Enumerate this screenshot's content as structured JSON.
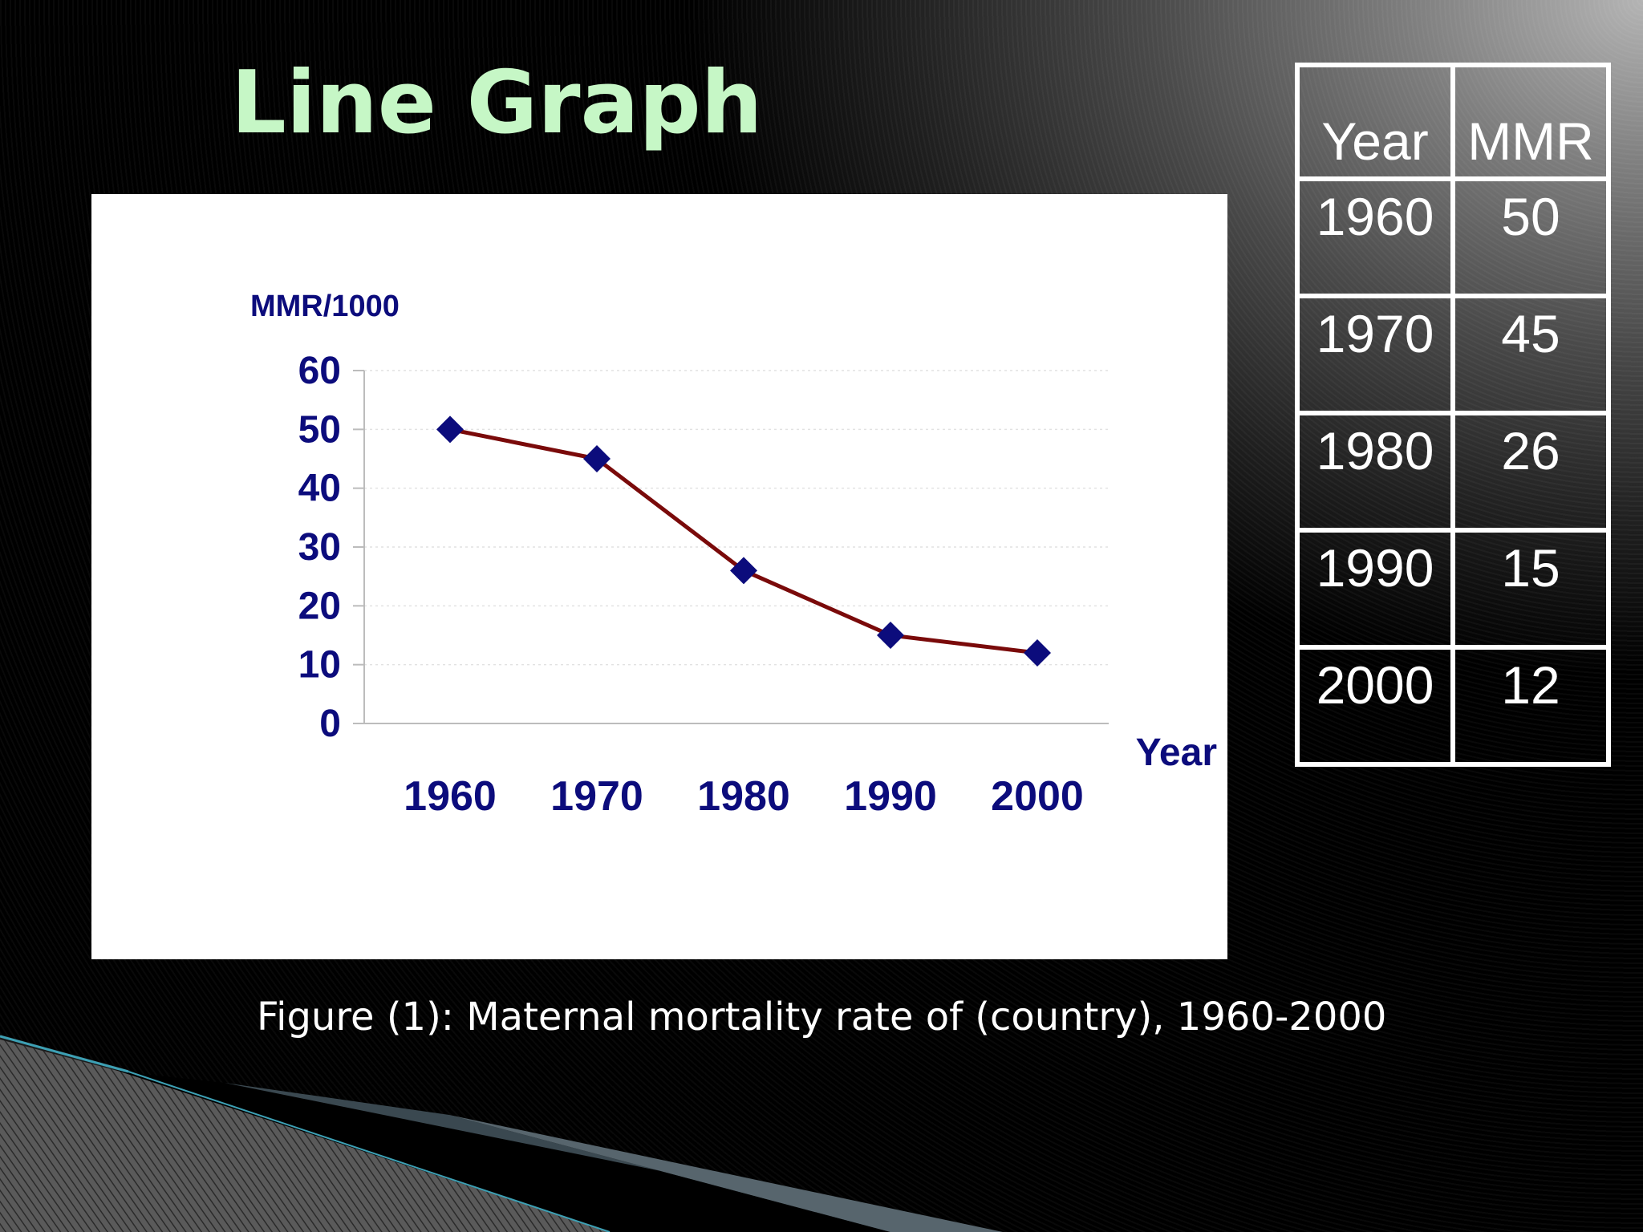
{
  "slide": {
    "title": "Line Graph",
    "caption": "Figure (1): Maternal mortality rate of (country), 1960-2000"
  },
  "table": {
    "headers": [
      "Year",
      "MMR"
    ],
    "rows": [
      [
        "1960",
        "50"
      ],
      [
        "1970",
        "45"
      ],
      [
        "1980",
        "26"
      ],
      [
        "1990",
        "15"
      ],
      [
        "2000",
        "12"
      ]
    ]
  },
  "colors": {
    "title": "#c6f7c6",
    "axis_text": "#0c0c7c",
    "line": "#7a0a0a",
    "marker": "#0c0c7c"
  },
  "chart_data": {
    "type": "line",
    "title": "",
    "ylabel": "MMR/1000",
    "xlabel": "Year",
    "categories": [
      "1960",
      "1970",
      "1980",
      "1990",
      "2000"
    ],
    "series": [
      {
        "values": [
          50,
          45,
          26,
          15,
          12
        ]
      }
    ],
    "ylim": [
      0,
      60
    ],
    "yticks": [
      0,
      10,
      20,
      30,
      40,
      50,
      60
    ],
    "grid": true,
    "legend": "none"
  }
}
